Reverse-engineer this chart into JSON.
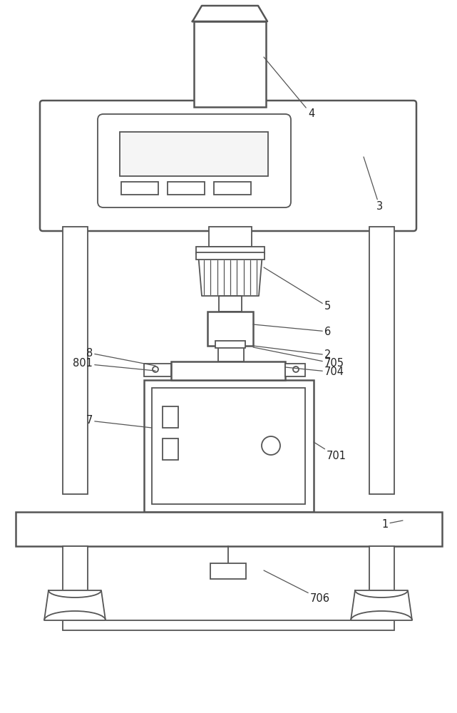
{
  "bg_color": "#ffffff",
  "line_color": "#555555",
  "line_width": 1.3,
  "fig_width": 6.41,
  "fig_height": 10.0
}
